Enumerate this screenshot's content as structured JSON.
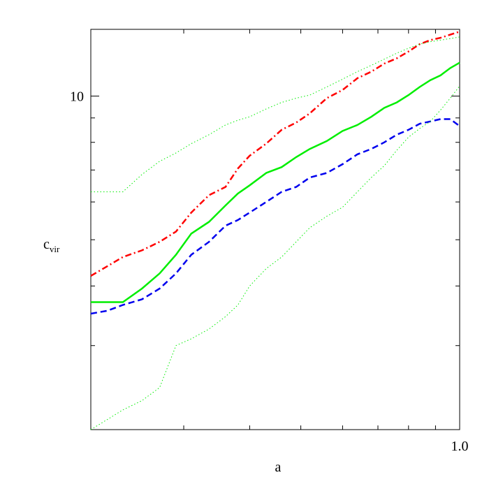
{
  "chart_data": {
    "type": "line",
    "title": "",
    "xlabel": "a",
    "ylabel": "c",
    "ylabel_sub": "vir",
    "xscale": "log",
    "yscale": "log",
    "xlim": [
      0.2,
      1.0
    ],
    "ylim": [
      2.0,
      13.8
    ],
    "grid": false,
    "legend": "none",
    "x_tick_labels": [
      {
        "value": 1.0,
        "label": "1.0"
      }
    ],
    "y_tick_labels": [
      {
        "value": 10,
        "label": "10"
      }
    ],
    "x_minor_ticks": [
      0.3,
      0.4,
      0.5,
      0.6,
      0.7,
      0.8,
      0.9
    ],
    "y_minor_ticks": [
      3,
      4,
      5,
      6,
      7,
      8,
      9
    ],
    "series": [
      {
        "color": "#ff0000",
        "style": "dashdot",
        "x": [
          0.2,
          0.215,
          0.23,
          0.25,
          0.27,
          0.29,
          0.31,
          0.335,
          0.36,
          0.38,
          0.4,
          0.43,
          0.46,
          0.49,
          0.52,
          0.56,
          0.6,
          0.64,
          0.68,
          0.72,
          0.76,
          0.8,
          0.84,
          0.88,
          0.92,
          0.96,
          1.0
        ],
        "y": [
          4.2,
          4.4,
          4.6,
          4.75,
          4.95,
          5.2,
          5.7,
          6.2,
          6.45,
          7.05,
          7.5,
          7.95,
          8.5,
          8.8,
          9.2,
          9.9,
          10.3,
          10.9,
          11.25,
          11.7,
          12.0,
          12.4,
          12.85,
          13.1,
          13.25,
          13.45,
          13.65
        ]
      },
      {
        "color": "#00ee00",
        "style": "solid",
        "x": [
          0.2,
          0.215,
          0.23,
          0.25,
          0.27,
          0.29,
          0.31,
          0.335,
          0.36,
          0.38,
          0.4,
          0.43,
          0.46,
          0.49,
          0.52,
          0.56,
          0.6,
          0.64,
          0.68,
          0.72,
          0.76,
          0.8,
          0.84,
          0.88,
          0.92,
          0.96,
          1.0
        ],
        "y": [
          3.7,
          3.7,
          3.7,
          3.95,
          4.25,
          4.65,
          5.15,
          5.45,
          5.9,
          6.25,
          6.5,
          6.9,
          7.1,
          7.45,
          7.75,
          8.05,
          8.45,
          8.7,
          9.05,
          9.45,
          9.7,
          10.05,
          10.45,
          10.8,
          11.05,
          11.45,
          11.75
        ]
      },
      {
        "color": "#0000ee",
        "style": "dashed",
        "x": [
          0.2,
          0.215,
          0.23,
          0.25,
          0.27,
          0.29,
          0.31,
          0.335,
          0.36,
          0.38,
          0.4,
          0.43,
          0.46,
          0.49,
          0.52,
          0.56,
          0.6,
          0.64,
          0.68,
          0.72,
          0.76,
          0.8,
          0.84,
          0.88,
          0.92,
          0.96,
          1.0
        ],
        "y": [
          3.5,
          3.55,
          3.65,
          3.75,
          3.95,
          4.25,
          4.65,
          4.95,
          5.35,
          5.5,
          5.7,
          6.0,
          6.3,
          6.45,
          6.75,
          6.9,
          7.2,
          7.55,
          7.75,
          8.0,
          8.3,
          8.5,
          8.75,
          8.85,
          8.95,
          8.95,
          8.65
        ]
      },
      {
        "color": "#00ee00",
        "style": "dotted",
        "x": [
          0.2,
          0.215,
          0.23,
          0.25,
          0.27,
          0.29,
          0.31,
          0.335,
          0.36,
          0.38,
          0.4,
          0.43,
          0.46,
          0.49,
          0.52,
          0.56,
          0.6,
          0.64,
          0.68,
          0.72,
          0.76,
          0.8,
          0.84,
          0.88,
          0.92,
          0.96,
          1.0
        ],
        "y": [
          6.3,
          6.3,
          6.3,
          6.85,
          7.3,
          7.6,
          7.95,
          8.3,
          8.7,
          8.9,
          9.05,
          9.4,
          9.7,
          9.9,
          10.05,
          10.45,
          10.85,
          11.25,
          11.6,
          11.95,
          12.3,
          12.6,
          12.85,
          13.0,
          13.1,
          13.2,
          13.3
        ]
      },
      {
        "color": "#00ee00",
        "style": "dotted",
        "x": [
          0.2,
          0.215,
          0.23,
          0.25,
          0.27,
          0.29,
          0.31,
          0.335,
          0.36,
          0.38,
          0.4,
          0.43,
          0.46,
          0.49,
          0.52,
          0.56,
          0.6,
          0.64,
          0.68,
          0.72,
          0.76,
          0.8,
          0.84,
          0.88,
          0.92,
          0.96,
          1.0
        ],
        "y": [
          2.0,
          2.1,
          2.2,
          2.3,
          2.45,
          3.0,
          3.1,
          3.25,
          3.45,
          3.65,
          4.0,
          4.35,
          4.6,
          4.95,
          5.3,
          5.6,
          5.85,
          6.3,
          6.75,
          7.15,
          7.7,
          8.2,
          8.55,
          8.85,
          9.35,
          9.9,
          10.5
        ]
      }
    ]
  }
}
